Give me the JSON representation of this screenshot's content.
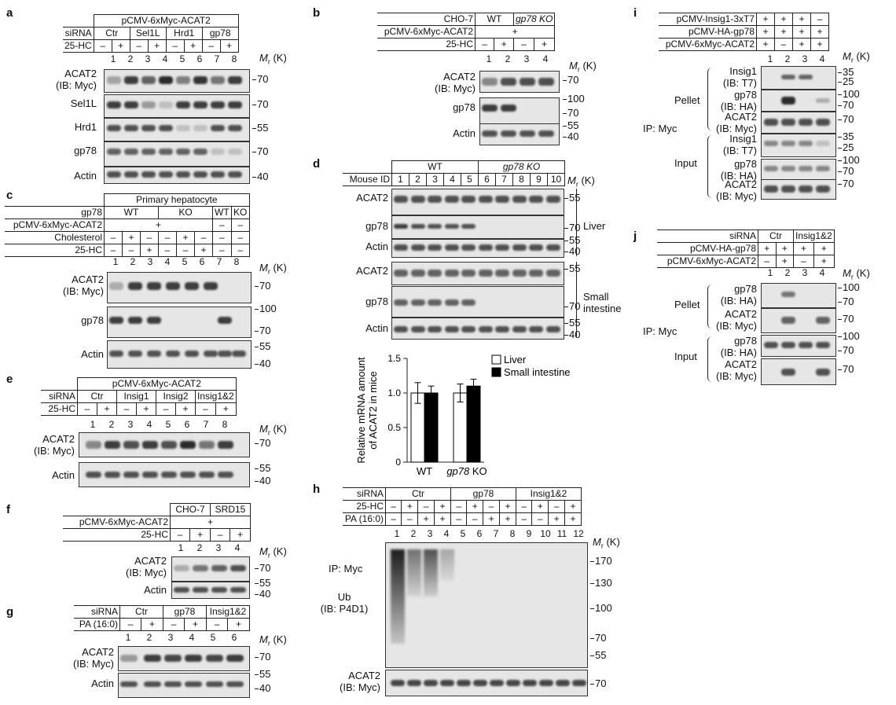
{
  "panel_letters": [
    "a",
    "b",
    "c",
    "d",
    "e",
    "f",
    "g",
    "h",
    "i",
    "j"
  ],
  "mr_label": "Mr (K)",
  "a": {
    "construct": "pCMV-6xMyc-ACAT2",
    "sirna_label": "siRNA",
    "sirna": [
      "Ctr",
      "Sel1L",
      "Hrd1",
      "gp78"
    ],
    "hc_label": "25-HC",
    "hc": [
      "–",
      "+",
      "–",
      "+",
      "–",
      "+",
      "–",
      "+"
    ],
    "lanes": [
      "1",
      "2",
      "3",
      "4",
      "5",
      "6",
      "7",
      "8"
    ],
    "rows": [
      {
        "label": "ACAT2\n(IB: Myc)",
        "mw": "70"
      },
      {
        "label": "Sel1L",
        "mw": "70"
      },
      {
        "label": "Hrd1",
        "mw": "55"
      },
      {
        "label": "gp78",
        "mw": "70"
      },
      {
        "label": "Actin",
        "mw": "40"
      }
    ]
  },
  "b": {
    "row1_label": "CHO-7",
    "wt": "WT",
    "ko": "gp78 KO",
    "row2_label": "pCMV-6xMyc-ACAT2",
    "row2_val": "+",
    "hc_label": "25-HC",
    "hc": [
      "–",
      "+",
      "–",
      "+"
    ],
    "lanes": [
      "1",
      "2",
      "3",
      "4"
    ],
    "rows": [
      {
        "label": "ACAT2\n(IB: Myc)",
        "mw": [
          "70"
        ]
      },
      {
        "label": "gp78",
        "mw": [
          "100",
          "70"
        ]
      },
      {
        "label": "Actin",
        "mw": [
          "55",
          "40"
        ]
      }
    ]
  },
  "c": {
    "title": "Primary hepatocyte",
    "gp78_label": "gp78",
    "groups": [
      "WT",
      "KO",
      "WT",
      "KO"
    ],
    "construct_label": "pCMV-6xMyc-ACAT2",
    "construct_vals": [
      "+",
      "–",
      "–"
    ],
    "chol_label": "Cholesterol",
    "chol": [
      "–",
      "+",
      "–",
      "–",
      "+",
      "–",
      "–",
      "–"
    ],
    "hc_label": "25-HC",
    "hc": [
      "–",
      "–",
      "+",
      "–",
      "–",
      "+",
      "–",
      "–"
    ],
    "lanes": [
      "1",
      "2",
      "3",
      "4",
      "5",
      "6",
      "7",
      "8"
    ],
    "rows": [
      {
        "label": "ACAT2\n(IB: Myc)",
        "mw": [
          "70"
        ]
      },
      {
        "label": "gp78",
        "mw": [
          "100",
          "70"
        ]
      },
      {
        "label": "Actin",
        "mw": [
          "55",
          "40"
        ]
      }
    ]
  },
  "d": {
    "mouse_label": "Mouse ID",
    "wt": "WT",
    "ko": "gp78 KO",
    "lanes": [
      "1",
      "2",
      "3",
      "4",
      "5",
      "6",
      "7",
      "8",
      "9",
      "10"
    ],
    "liver": "Liver",
    "small_intestine": "Small\nintestine",
    "rows": [
      {
        "label": "ACAT2",
        "mw": [
          "55"
        ]
      },
      {
        "label": "gp78",
        "mw": [
          "70"
        ]
      },
      {
        "label": "Actin",
        "mw": [
          "55",
          "40"
        ]
      },
      {
        "label": "ACAT2",
        "mw": [
          "55"
        ]
      },
      {
        "label": "gp78",
        "mw": [
          "70"
        ]
      },
      {
        "label": "Actin",
        "mw": [
          "55",
          "40"
        ]
      }
    ]
  },
  "chart_data": {
    "type": "bar",
    "categories": [
      "WT",
      "gp78 KO"
    ],
    "series": [
      {
        "name": "Liver",
        "values": [
          1.0,
          1.0
        ],
        "errors": [
          0.15,
          0.13
        ],
        "color": "#ffffff"
      },
      {
        "name": "Small intestine",
        "values": [
          1.0,
          1.1
        ],
        "errors": [
          0.1,
          0.1
        ],
        "color": "#000000"
      }
    ],
    "ylabel": "Relative mRNA amount\nof ACAT2 in mice",
    "ylim": [
      0,
      1.5
    ],
    "yticks": [
      "0",
      "0.5",
      "1.0",
      "1.5"
    ],
    "legend": "top-right"
  },
  "e": {
    "construct": "pCMV-6xMyc-ACAT2",
    "sirna_label": "siRNA",
    "sirna": [
      "Ctr",
      "Insig1",
      "Insig2",
      "Insig1&2"
    ],
    "hc_label": "25-HC",
    "hc": [
      "–",
      "+",
      "–",
      "+",
      "–",
      "+",
      "–",
      "+"
    ],
    "lanes": [
      "1",
      "2",
      "3",
      "4",
      "5",
      "6",
      "7",
      "8"
    ],
    "rows": [
      {
        "label": "ACAT2\n(IB: Myc)",
        "mw": [
          "70"
        ]
      },
      {
        "label": "Actin",
        "mw": [
          "55",
          "40"
        ]
      }
    ]
  },
  "f": {
    "cells": [
      "CHO-7",
      "SRD15"
    ],
    "construct_label": "pCMV-6xMyc-ACAT2",
    "construct_val": "+",
    "hc_label": "25-HC",
    "hc": [
      "–",
      "+",
      "–",
      "+"
    ],
    "lanes": [
      "1",
      "2",
      "3",
      "4"
    ],
    "rows": [
      {
        "label": "ACAT2\n(IB: Myc)",
        "mw": [
          "70"
        ]
      },
      {
        "label": "Actin",
        "mw": [
          "55",
          "40"
        ]
      }
    ]
  },
  "g": {
    "sirna_label": "siRNA",
    "sirna": [
      "Ctr",
      "gp78",
      "Insig1&2"
    ],
    "pa_label": "PA (16:0)",
    "pa": [
      "–",
      "+",
      "–",
      "+",
      "–",
      "+"
    ],
    "lanes": [
      "1",
      "2",
      "3",
      "4",
      "5",
      "6"
    ],
    "rows": [
      {
        "label": "ACAT2\n(IB: Myc)",
        "mw": [
          "70"
        ]
      },
      {
        "label": "Actin",
        "mw": [
          "55",
          "40"
        ]
      }
    ]
  },
  "h": {
    "sirna_label": "siRNA",
    "sirna": [
      "Ctr",
      "gp78",
      "Insig1&2"
    ],
    "hc_label": "25-HC",
    "hc": [
      "–",
      "+",
      "–",
      "+",
      "–",
      "+",
      "–",
      "+",
      "–",
      "+",
      "–",
      "+"
    ],
    "pa_label": "PA (16:0)",
    "pa": [
      "–",
      "–",
      "+",
      "+",
      "–",
      "–",
      "+",
      "+",
      "–",
      "–",
      "+",
      "+"
    ],
    "lanes": [
      "1",
      "2",
      "3",
      "4",
      "5",
      "6",
      "7",
      "8",
      "9",
      "10",
      "11",
      "12"
    ],
    "ip": "IP: Myc",
    "ub": "Ub\n(IB: P4D1)",
    "acat": "ACAT2\n(IB: Myc)",
    "mw": [
      "170",
      "130",
      "100",
      "70",
      "55"
    ],
    "acat_mw": "70"
  },
  "i": {
    "r1": "pCMV-Insig1-3xT7",
    "r1v": [
      "+",
      "+",
      "+",
      "–"
    ],
    "r2": "pCMV-HA-gp78",
    "r2v": [
      "+",
      "+",
      "+",
      "+"
    ],
    "r3": "pCMV-6xMyc-ACAT2",
    "r3v": [
      "+",
      "–",
      "+",
      "+"
    ],
    "lanes": [
      "1",
      "2",
      "3",
      "4"
    ],
    "pellet": "Pellet",
    "input": "Input",
    "ip": "IP: Myc",
    "rows": [
      {
        "label": "Insig1\n(IB: T7)",
        "mw": [
          "35",
          "25"
        ]
      },
      {
        "label": "gp78\n(IB: HA)",
        "mw": [
          "100",
          "70"
        ]
      },
      {
        "label": "ACAT2\n(IB: Myc)",
        "mw": [
          "70"
        ]
      },
      {
        "label": "Insig1\n(IB: T7)",
        "mw": [
          "35",
          "25"
        ]
      },
      {
        "label": "gp78\n(IB: HA)",
        "mw": [
          "100",
          "70"
        ]
      },
      {
        "label": "ACAT2\n(IB: Myc)",
        "mw": [
          "70"
        ]
      }
    ]
  },
  "j": {
    "sirna_label": "siRNA",
    "sirna": [
      "Ctr",
      "Insig1&2"
    ],
    "r2": "pCMV-HA-gp78",
    "r2v": [
      "+",
      "+",
      "+",
      "+"
    ],
    "r3": "pCMV-6xMyc-ACAT2",
    "r3v": [
      "–",
      "+",
      "–",
      "+"
    ],
    "lanes": [
      "1",
      "2",
      "3",
      "4"
    ],
    "pellet": "Pellet",
    "input": "Input",
    "ip": "IP: Myc",
    "rows": [
      {
        "label": "gp78\n(IB: HA)",
        "mw": [
          "100",
          "70"
        ]
      },
      {
        "label": "ACAT2\n(IB: Myc)",
        "mw": [
          "70"
        ]
      },
      {
        "label": "gp78\n(IB: HA)",
        "mw": [
          "100",
          "70"
        ]
      },
      {
        "label": "ACAT2\n(IB: Myc)",
        "mw": [
          "70"
        ]
      }
    ]
  }
}
